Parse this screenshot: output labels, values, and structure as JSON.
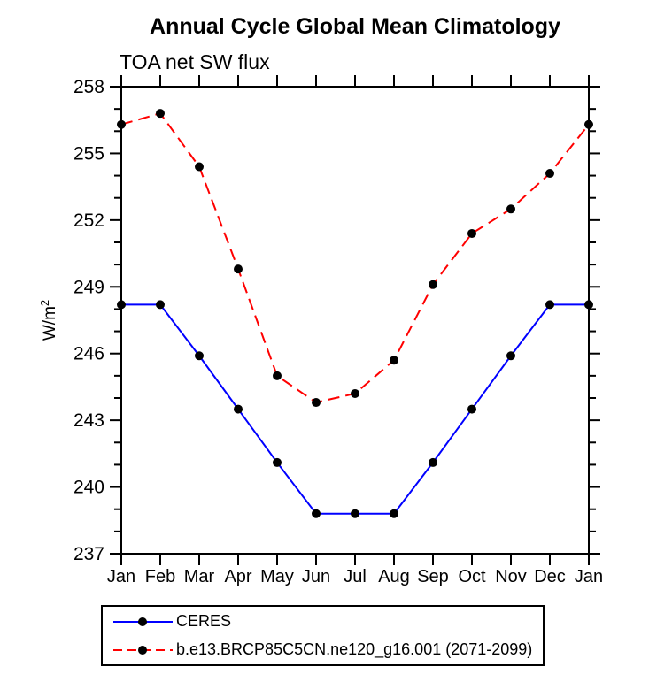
{
  "chart_data": {
    "type": "line",
    "title": "Annual Cycle Global Mean Climatology",
    "subtitle": "TOA net SW flux",
    "ylabel": "W/m²",
    "xlabel": "",
    "x_tick_labels": [
      "Jan",
      "Feb",
      "Mar",
      "Apr",
      "May",
      "Jun",
      "Jul",
      "Aug",
      "Sep",
      "Oct",
      "Nov",
      "Dec",
      "Jan"
    ],
    "ylim": [
      237,
      258
    ],
    "y_major_tick_step": 3,
    "y_minor_tick_step": 1,
    "y_major_tick_values": [
      237,
      240,
      243,
      246,
      249,
      252,
      255,
      258
    ],
    "grid": false,
    "legend_position": "bottom-left boxed",
    "series": [
      {
        "name": "CERES",
        "color": "#0000ff",
        "line_style": "solid",
        "marker": "filled-black-circle",
        "values": [
          248.2,
          248.2,
          245.9,
          243.5,
          241.1,
          238.8,
          238.8,
          238.8,
          241.1,
          243.5,
          245.9,
          248.2,
          248.2
        ]
      },
      {
        "name": "b.e13.BRCP85C5CN.ne120_g16.001 (2071-2099)",
        "color": "#ff0000",
        "line_style": "dashed",
        "marker": "filled-black-circle",
        "values": [
          256.3,
          256.8,
          254.4,
          249.8,
          245.0,
          243.8,
          244.2,
          245.7,
          249.1,
          251.4,
          252.5,
          254.1,
          256.3
        ]
      }
    ],
    "axis_color": "#000000",
    "marker_color": "#000000"
  }
}
